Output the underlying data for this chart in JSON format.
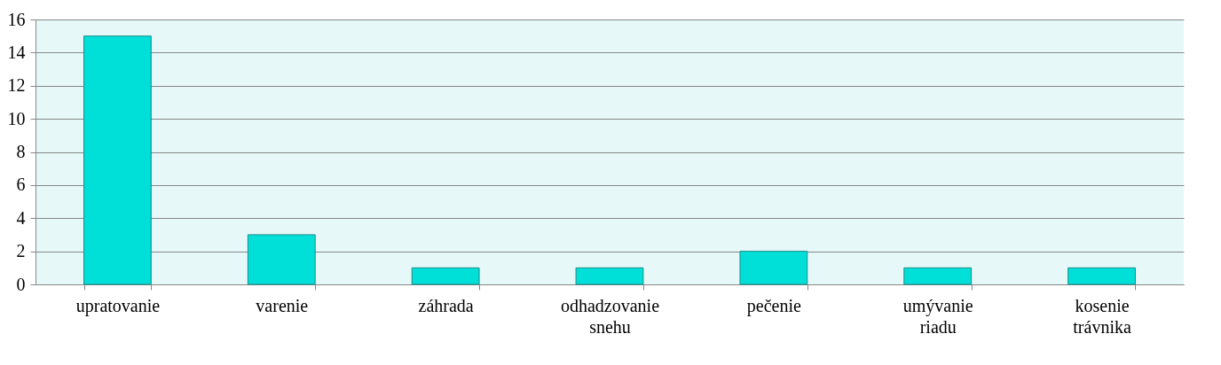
{
  "chart_data": {
    "type": "bar",
    "categories": [
      "upratovanie",
      "varenie",
      "záhrada",
      "odhadzovanie snehu",
      "pečenie",
      "umývanie riadu",
      "kosenie trávnika"
    ],
    "values": [
      15,
      3,
      1,
      1,
      2,
      1,
      1
    ],
    "color": "#00e0d8",
    "ylim": [
      0,
      16
    ],
    "yticks": [
      0,
      2,
      4,
      6,
      8,
      10,
      12,
      14,
      16
    ],
    "grid": "y"
  }
}
